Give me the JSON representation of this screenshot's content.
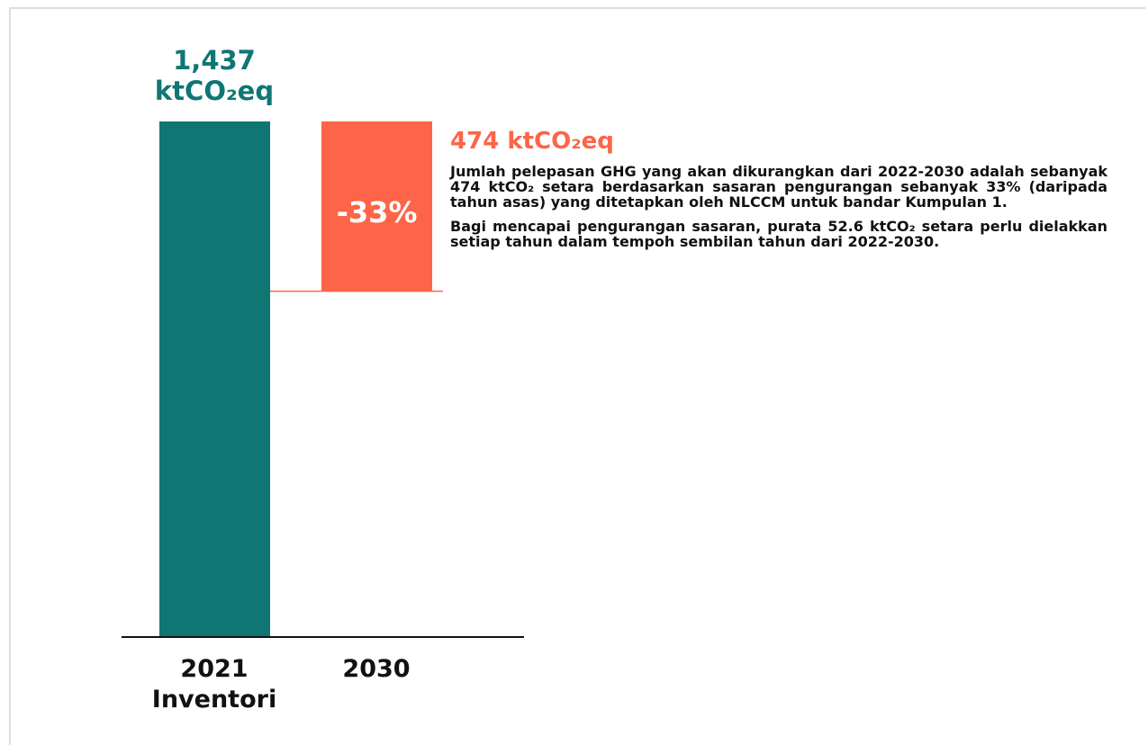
{
  "chart_data": {
    "type": "waterfall",
    "categories": [
      "2021 Inventori",
      "2030"
    ],
    "values": [
      1437,
      474
    ],
    "value_labels": [
      "1,437 ktCO₂eq",
      "474 ktCO₂eq"
    ],
    "colors": [
      "#0f7674",
      "#fe6447"
    ],
    "percent_change": -33,
    "percent_label": "-33%",
    "notes": [
      "Jumlah pelepasan GHG yang akan dikurangkan dari 2022-2030 adalah sebanyak 474 ktCO₂ setara berdasarkan sasaran pengurangan sebanyak 33% (daripada tahun asas) yang ditetapkan oleh NLCCM untuk bandar Kumpulan 1.",
      "Bagi mencapai pengurangan sasaran, purata 52.6 ktCO₂ setara perlu dielakkan setiap tahun dalam tempoh sembilan tahun dari 2022-2030."
    ]
  }
}
